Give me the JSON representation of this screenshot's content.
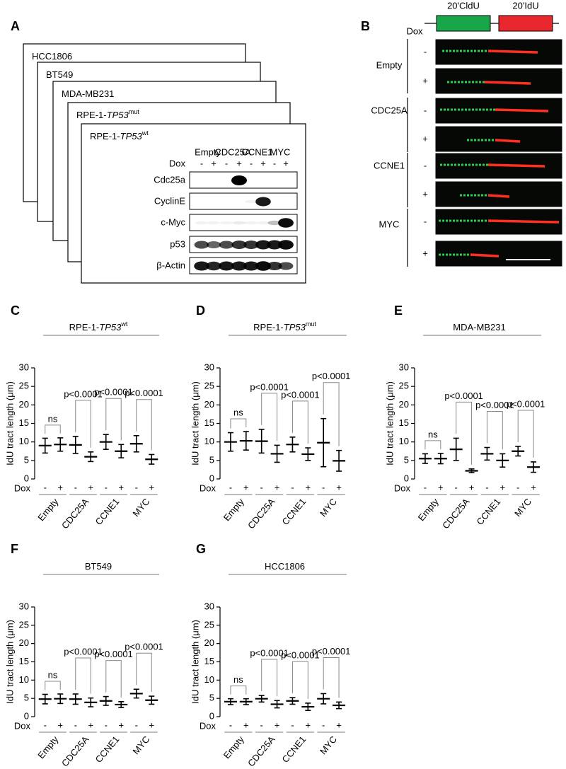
{
  "panel_a": {
    "label": "A",
    "cell_lines": [
      [
        "HCC1806"
      ],
      [
        "BT549"
      ],
      [
        "MDA-MB231"
      ],
      [
        "RPE-1-",
        "TP53",
        "mut"
      ],
      [
        "RPE-1-",
        "TP53",
        "wt"
      ]
    ],
    "groups": [
      "Empty",
      "CDC25A",
      "CCNE1",
      "MYC"
    ],
    "dox_label": "Dox",
    "dox": [
      "-",
      "+",
      "-",
      "+",
      "-",
      "+",
      "-",
      "+"
    ],
    "rows": [
      "Cdc25a",
      "CyclinE",
      "c-Myc",
      "p53",
      "β-Actin"
    ]
  },
  "panel_b": {
    "label": "B",
    "pulses": [
      "20'CldU",
      "20'IdU"
    ],
    "dox_label": "Dox",
    "groups": [
      "Empty",
      "CDC25A",
      "CCNE1",
      "MYC"
    ],
    "dox": [
      "-",
      "+",
      "-",
      "+",
      "-",
      "+",
      "-",
      "+"
    ]
  },
  "chart_data": [
    {
      "type": "dotplot",
      "label": "C",
      "title_parts": [
        "RPE-1-",
        "TP53",
        "wt"
      ],
      "ylabel": "IdU tract length (μm)",
      "xlabel": "Dox",
      "categories": [
        "-",
        "+",
        "-",
        "+",
        "-",
        "+",
        "-",
        "+"
      ],
      "groups": [
        "Empty",
        "CDC25A",
        "CCNE1",
        "MYC"
      ],
      "values": [
        9,
        9.3,
        9.2,
        6,
        10,
        7.5,
        9.5,
        5.3
      ],
      "errors": [
        2,
        1.8,
        2.3,
        1.3,
        2,
        1.8,
        2.2,
        1.3
      ],
      "annotations": [
        "ns",
        "p<0.0001",
        "p<0.0001",
        "p<0.0001"
      ],
      "ylim": [
        0,
        30
      ],
      "yticks": [
        0,
        5,
        10,
        15,
        20,
        25,
        30
      ],
      "color": "#000000"
    },
    {
      "type": "dotplot",
      "label": "D",
      "title_parts": [
        "RPE-1-",
        "TP53",
        "mut"
      ],
      "ylabel": "IdU tract length (μm)",
      "xlabel": "Dox",
      "categories": [
        "-",
        "+",
        "-",
        "+",
        "-",
        "+",
        "-",
        "+"
      ],
      "groups": [
        "Empty",
        "CDC25A",
        "CCNE1",
        "MYC"
      ],
      "values": [
        10,
        10.3,
        10.2,
        6.8,
        9.3,
        6.7,
        9.8,
        4.9
      ],
      "errors": [
        2.5,
        2.5,
        3.2,
        2.3,
        2,
        1.7,
        6.5,
        2.8
      ],
      "annotations": [
        "ns",
        "p<0.0001",
        "p<0.0001",
        "p<0.0001"
      ],
      "ylim": [
        0,
        30
      ],
      "yticks": [
        0,
        5,
        10,
        15,
        20,
        25,
        30
      ],
      "color": "#000000"
    },
    {
      "type": "dotplot",
      "label": "E",
      "title_parts": [
        "MDA-MB231"
      ],
      "ylabel": "IdU tract length (μm)",
      "xlabel": "Dox",
      "categories": [
        "-",
        "+",
        "-",
        "+",
        "-",
        "+",
        "-",
        "+"
      ],
      "groups": [
        "Empty",
        "CDC25A",
        "CCNE1",
        "MYC"
      ],
      "values": [
        5.5,
        5.5,
        8,
        2.2,
        6.8,
        5,
        7.5,
        3.2
      ],
      "errors": [
        1.3,
        1.4,
        3,
        0.5,
        1.7,
        1.8,
        1.3,
        1.4
      ],
      "annotations": [
        "ns",
        "p<0.0001",
        "p<0.0001",
        "p<0.0001"
      ],
      "ylim": [
        0,
        30
      ],
      "yticks": [
        0,
        5,
        10,
        15,
        20,
        25,
        30
      ],
      "color": "#000000"
    },
    {
      "type": "dotplot",
      "label": "F",
      "title_parts": [
        "BT549"
      ],
      "ylabel": "IdU tract length (μm)",
      "xlabel": "Dox",
      "categories": [
        "-",
        "+",
        "-",
        "+",
        "-",
        "+",
        "-",
        "+"
      ],
      "groups": [
        "Empty",
        "CDC25A",
        "CCNE1",
        "MYC"
      ],
      "values": [
        4.8,
        4.9,
        4.8,
        3.9,
        4.3,
        3.3,
        6.3,
        4.5
      ],
      "errors": [
        1.3,
        1.3,
        1.4,
        1.2,
        1.2,
        0.8,
        1.2,
        1.1
      ],
      "annotations": [
        "ns",
        "p<0.0001",
        "p<0.0001",
        "p<0.0001"
      ],
      "ylim": [
        0,
        30
      ],
      "yticks": [
        0,
        5,
        10,
        15,
        20,
        25,
        30
      ],
      "color": "#000000"
    },
    {
      "type": "dotplot",
      "label": "G",
      "title_parts": [
        "HCC1806"
      ],
      "ylabel": "IdU tract length (μm)",
      "xlabel": "Dox",
      "categories": [
        "-",
        "+",
        "-",
        "+",
        "-",
        "+",
        "-",
        "+"
      ],
      "groups": [
        "Empty",
        "CDC25A",
        "CCNE1",
        "MYC"
      ],
      "values": [
        4.1,
        4.1,
        4.9,
        3.4,
        4.3,
        2.7,
        4.9,
        3.1
      ],
      "errors": [
        0.8,
        0.8,
        0.9,
        1,
        0.9,
        1,
        1.4,
        0.9
      ],
      "annotations": [
        "ns",
        "p<0.0001",
        "p<0.0001",
        "p<0.0001"
      ],
      "ylim": [
        0,
        30
      ],
      "yticks": [
        0,
        5,
        10,
        15,
        20,
        25,
        30
      ],
      "color": "#000000"
    }
  ]
}
